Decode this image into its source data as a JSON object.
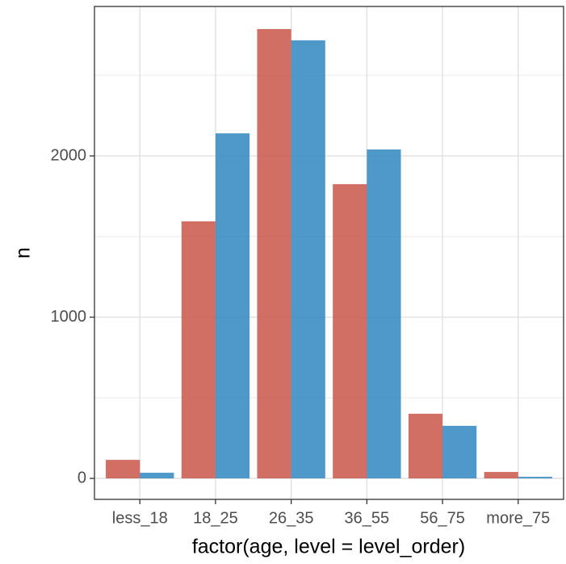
{
  "chart_data": {
    "type": "bar",
    "x_label": "factor(age, level = level_order)",
    "y_label": "n",
    "categories": [
      "less_18",
      "18_25",
      "26_35",
      "36_55",
      "56_75",
      "more_75"
    ],
    "series": [
      {
        "color": "#c9564a",
        "values": [
          115,
          1594,
          2787,
          1825,
          401,
          40
        ]
      },
      {
        "color": "#2f87c0",
        "values": [
          35,
          2140,
          2717,
          2040,
          326,
          10
        ]
      }
    ],
    "ylim": [
      -130,
      2927
    ],
    "yticks": [
      0,
      1000,
      2000
    ],
    "minor_grid": [
      500,
      1500,
      2500
    ],
    "grid": true
  }
}
